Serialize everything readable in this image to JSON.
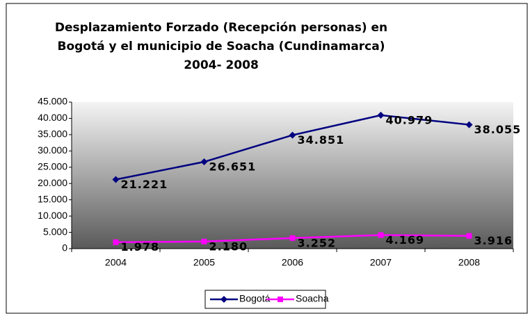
{
  "chart_data": {
    "type": "line",
    "title": [
      "Desplazamiento Forzado (Recepción personas) en",
      "Bogotá y el municipio de Soacha (Cundinamarca)",
      "2004- 2008"
    ],
    "categories": [
      "2004",
      "2005",
      "2006",
      "2007",
      "2008"
    ],
    "series": [
      {
        "name": "Bogotá",
        "color": "#000080",
        "marker": "diamond",
        "values": [
          21221,
          26651,
          34851,
          40979,
          38055
        ],
        "value_labels": [
          "21.221",
          "26.651",
          "34.851",
          "40.979",
          "38.055"
        ]
      },
      {
        "name": "Soacha",
        "color": "#ff00ff",
        "marker": "square",
        "values": [
          1978,
          2180,
          3252,
          4169,
          3916
        ],
        "value_labels": [
          "1.978",
          "2.180",
          "3.252",
          "4.169",
          "3.916"
        ]
      }
    ],
    "ylim": [
      0,
      45000
    ],
    "yticks": [
      0,
      {
        "value": 5000,
        "label": "5.000"
      },
      {
        "value": 10000,
        "label": "10.000"
      },
      {
        "value": 15000,
        "label": "15.000"
      },
      {
        "value": 20000,
        "label": "20.000"
      },
      {
        "value": 25000,
        "label": "25.000"
      },
      {
        "value": 30000,
        "label": "30.000"
      },
      {
        "value": 35000,
        "label": "35.000"
      },
      {
        "value": 40000,
        "label": "40.000"
      },
      {
        "value": 45000,
        "label": "45.000"
      }
    ],
    "grid": false,
    "legend": "bottom"
  }
}
